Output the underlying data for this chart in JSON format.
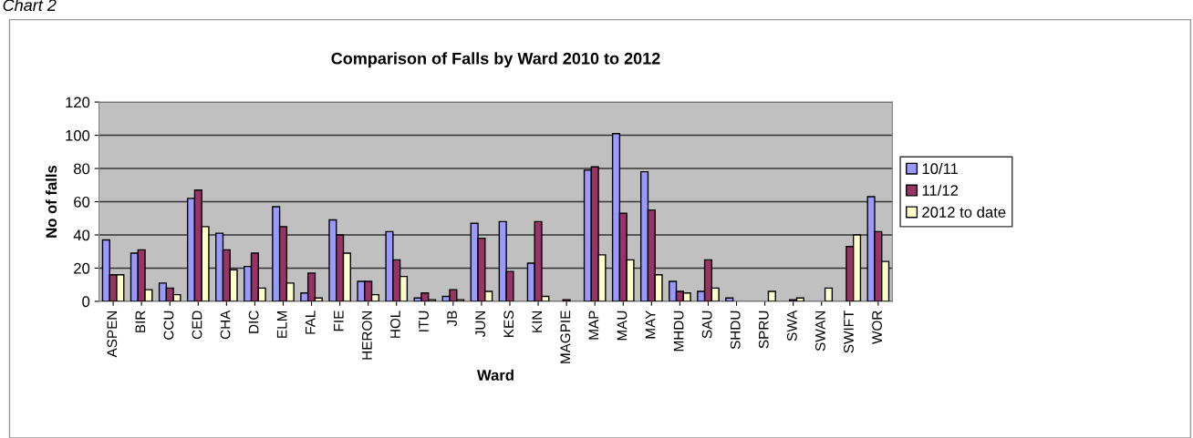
{
  "chart_data": {
    "type": "bar",
    "title": "Comparison of Falls by Ward 2010 to 2012",
    "xlabel": "Ward",
    "ylabel": "No of falls",
    "annotations": [
      "Chart 2"
    ],
    "categories": [
      "ASPEN",
      "BIR",
      "CCU",
      "CED",
      "CHA",
      "DIC",
      "ELM",
      "FAL",
      "FIE",
      "HERON",
      "HOL",
      "ITU",
      "JB",
      "JUN",
      "KES",
      "KIN",
      "MAGPIE",
      "MAP",
      "MAU",
      "MAY",
      "MHDU",
      "SAU",
      "SHDU",
      "SPRU",
      "SWA",
      "SWAN",
      "SWIFT",
      "WOR"
    ],
    "series": [
      {
        "name": "10/11",
        "color": "#9999ff",
        "values": [
          37,
          29,
          11,
          62,
          41,
          21,
          57,
          5,
          49,
          12,
          42,
          2,
          3,
          47,
          48,
          23,
          null,
          79,
          101,
          78,
          12,
          6,
          2,
          null,
          null,
          null,
          null,
          63
        ]
      },
      {
        "name": "11/12",
        "color": "#993366",
        "values": [
          16,
          31,
          8,
          67,
          31,
          29,
          45,
          17,
          40,
          12,
          25,
          5,
          7,
          38,
          18,
          48,
          1,
          81,
          53,
          55,
          6,
          25,
          null,
          null,
          1,
          null,
          33,
          42
        ]
      },
      {
        "name": "2012 to date",
        "color": "#ffffcc",
        "values": [
          16,
          7,
          4,
          45,
          19,
          8,
          11,
          2,
          29,
          4,
          15,
          1,
          1,
          6,
          null,
          3,
          null,
          28,
          25,
          16,
          5,
          8,
          null,
          6,
          2,
          8,
          40,
          24
        ]
      }
    ],
    "ylim": [
      0,
      120
    ],
    "yticks": [
      0,
      20,
      40,
      60,
      80,
      100,
      120
    ],
    "grid": "y",
    "legend": "right"
  }
}
